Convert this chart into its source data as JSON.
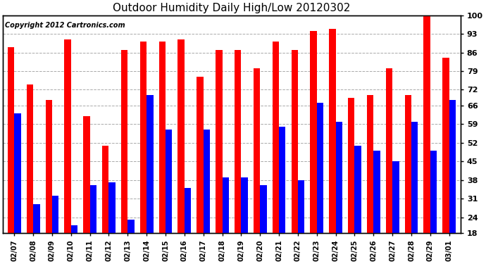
{
  "title": "Outdoor Humidity Daily High/Low 20120302",
  "copyright": "Copyright 2012 Cartronics.com",
  "dates": [
    "02/07",
    "02/08",
    "02/09",
    "02/10",
    "02/11",
    "02/12",
    "02/13",
    "02/14",
    "02/15",
    "02/16",
    "02/17",
    "02/18",
    "02/19",
    "02/20",
    "02/21",
    "02/22",
    "02/23",
    "02/24",
    "02/25",
    "02/26",
    "02/27",
    "02/28",
    "02/29",
    "03/01"
  ],
  "highs": [
    88,
    74,
    68,
    91,
    62,
    51,
    87,
    90,
    90,
    91,
    77,
    87,
    87,
    80,
    90,
    87,
    94,
    95,
    69,
    70,
    80,
    70,
    100,
    84
  ],
  "lows": [
    63,
    29,
    32,
    21,
    36,
    37,
    23,
    70,
    57,
    35,
    57,
    39,
    39,
    36,
    58,
    38,
    67,
    60,
    51,
    49,
    45,
    60,
    49,
    68
  ],
  "high_color": "#ff0000",
  "low_color": "#0000ff",
  "bg_color": "#ffffff",
  "plot_bg_color": "#ffffff",
  "grid_color": "#aaaaaa",
  "yticks": [
    18,
    24,
    31,
    38,
    45,
    52,
    59,
    66,
    72,
    79,
    86,
    93,
    100
  ],
  "ylim_min": 18,
  "ylim_max": 100,
  "title_fontsize": 11,
  "copyright_fontsize": 7,
  "bar_width": 0.35,
  "figwidth": 6.9,
  "figheight": 3.75,
  "dpi": 100
}
